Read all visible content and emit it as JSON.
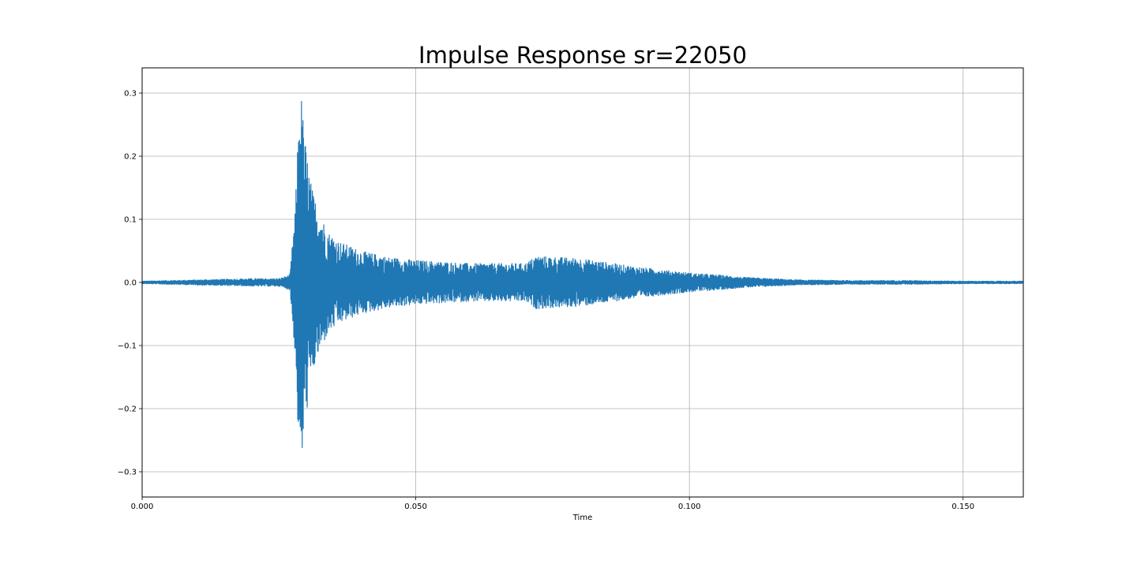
{
  "chart_data": {
    "type": "line",
    "title": "Impulse Response sr=22050",
    "xlabel": "Time",
    "ylabel": "",
    "xlim": [
      0.0,
      0.161
    ],
    "ylim": [
      -0.34,
      0.34
    ],
    "xticks": [
      0.0,
      0.05,
      0.1,
      0.15
    ],
    "xtick_labels": [
      "0.000",
      "0.050",
      "0.100",
      "0.150"
    ],
    "yticks": [
      0.3,
      0.2,
      0.1,
      0.0,
      -0.1,
      -0.2,
      -0.3
    ],
    "ytick_labels": [
      "0.3",
      "0.2",
      "0.1",
      "0.0",
      "−0.1",
      "−0.2",
      "−0.3"
    ],
    "grid": true,
    "series": [
      {
        "color": "#1f77b4",
        "sample_rate": 22050,
        "envelope": {
          "time": [
            0.0,
            0.01,
            0.02,
            0.025,
            0.027,
            0.028,
            0.0285,
            0.029,
            0.0295,
            0.03,
            0.031,
            0.032,
            0.034,
            0.036,
            0.04,
            0.045,
            0.05,
            0.06,
            0.07,
            0.072,
            0.08,
            0.09,
            0.1,
            0.105,
            0.11,
            0.12,
            0.13,
            0.14,
            0.15,
            0.161
          ],
          "peak": [
            0.002,
            0.004,
            0.006,
            0.006,
            0.012,
            0.12,
            0.24,
            0.31,
            0.25,
            0.21,
            0.15,
            0.12,
            0.08,
            0.065,
            0.05,
            0.04,
            0.035,
            0.03,
            0.03,
            0.042,
            0.038,
            0.025,
            0.015,
            0.012,
            0.008,
            0.004,
            0.003,
            0.003,
            0.002,
            0.002
          ]
        }
      }
    ]
  }
}
